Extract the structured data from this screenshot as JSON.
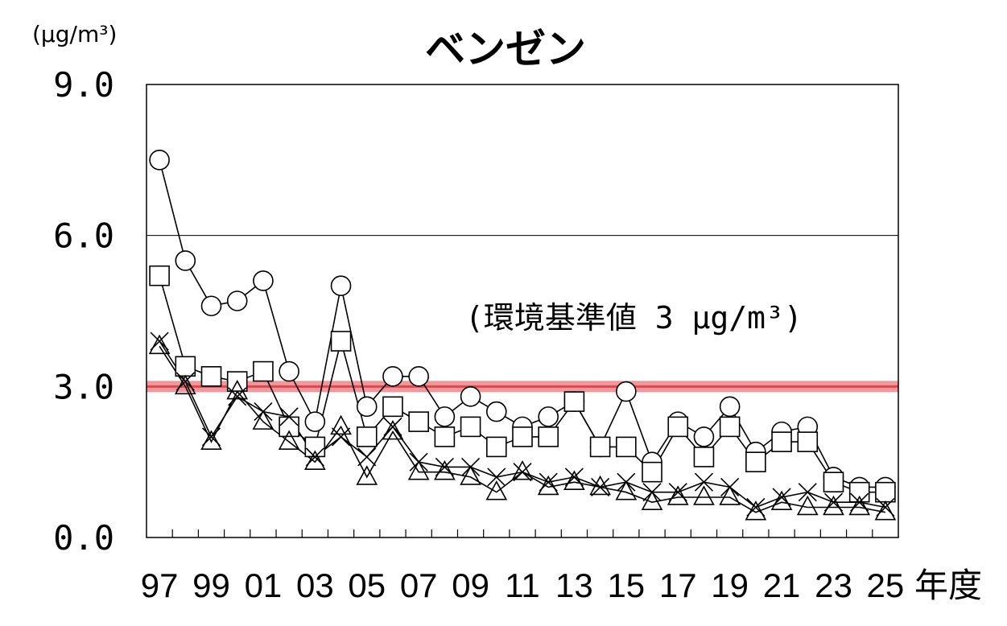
{
  "chart_data": {
    "type": "line",
    "title": "ベンゼン",
    "unit_label": "(μg/m³)",
    "xlabel": "年度",
    "ylabel": "",
    "ylim": [
      0,
      9
    ],
    "yticks": [
      0,
      3,
      6,
      9
    ],
    "ytick_labels": [
      "0.0",
      "3.0",
      "6.0",
      "9.0"
    ],
    "x": [
      "97",
      "98",
      "99",
      "00",
      "01",
      "02",
      "03",
      "04",
      "05",
      "06",
      "07",
      "08",
      "09",
      "10",
      "11",
      "12",
      "13",
      "14",
      "15",
      "16",
      "17",
      "18",
      "19",
      "20",
      "21",
      "22",
      "23",
      "24",
      "25"
    ],
    "xtick_labels": [
      "97",
      "99",
      "01",
      "03",
      "05",
      "07",
      "09",
      "11",
      "13",
      "15",
      "17",
      "19",
      "21",
      "23",
      "25"
    ],
    "grid_y": [
      6
    ],
    "reference_line": {
      "value": 3,
      "color": "#e8434b",
      "label": "(環境基準値 3 μg/m³)"
    },
    "series": [
      {
        "marker": "circle",
        "values": [
          7.5,
          5.5,
          4.6,
          4.7,
          5.1,
          3.3,
          2.3,
          5.0,
          2.6,
          3.2,
          3.2,
          2.4,
          2.8,
          2.5,
          2.2,
          2.4,
          2.7,
          1.8,
          2.9,
          1.5,
          2.3,
          2.0,
          2.6,
          1.7,
          2.1,
          2.2,
          1.2,
          1.0,
          1.0
        ]
      },
      {
        "marker": "square",
        "values": [
          5.2,
          3.4,
          3.2,
          3.1,
          3.3,
          2.2,
          1.8,
          3.9,
          2.0,
          2.6,
          2.3,
          2.0,
          2.2,
          1.8,
          2.0,
          2.0,
          2.7,
          1.8,
          1.8,
          1.3,
          2.2,
          1.6,
          2.2,
          1.5,
          1.9,
          1.9,
          1.1,
          0.9,
          0.9
        ]
      },
      {
        "marker": "cross",
        "values": [
          3.9,
          3.1,
          2.0,
          2.8,
          2.5,
          2.4,
          1.6,
          2.0,
          1.6,
          2.2,
          1.5,
          1.4,
          1.4,
          1.2,
          1.3,
          1.1,
          1.2,
          1.0,
          1.1,
          0.9,
          0.9,
          1.1,
          1.0,
          0.6,
          0.8,
          0.9,
          0.7,
          0.7,
          0.6
        ]
      },
      {
        "marker": "triangle",
        "values": [
          3.8,
          3.0,
          1.9,
          2.9,
          2.3,
          1.9,
          1.5,
          2.2,
          1.2,
          2.1,
          1.3,
          1.3,
          1.2,
          0.9,
          1.3,
          1.0,
          1.1,
          1.0,
          0.9,
          0.7,
          0.8,
          0.8,
          0.8,
          0.5,
          0.7,
          0.6,
          0.6,
          0.6,
          0.5
        ]
      }
    ]
  }
}
